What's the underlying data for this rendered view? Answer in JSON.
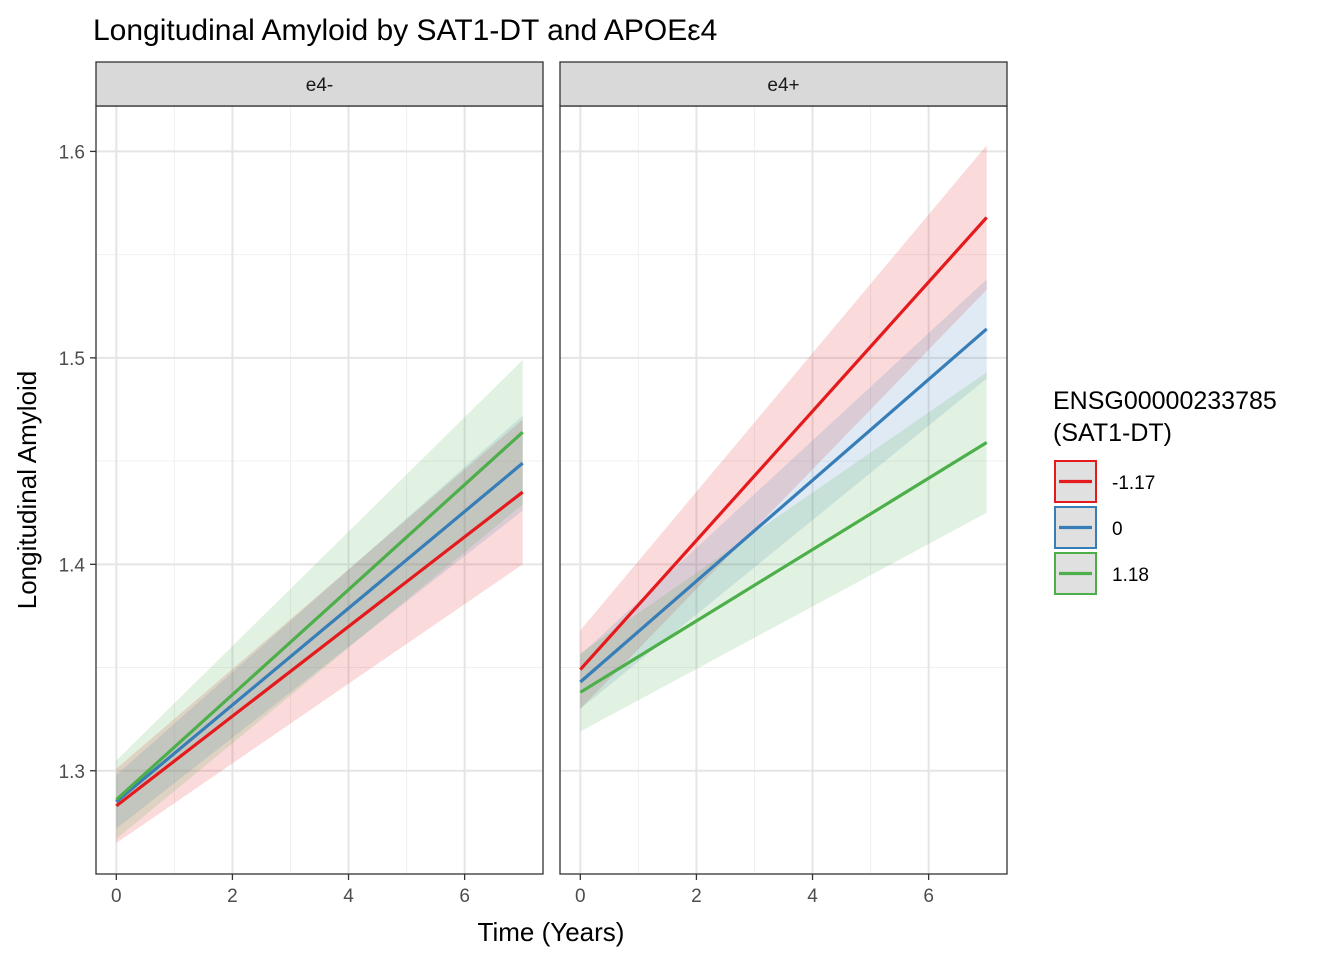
{
  "chart_data": {
    "type": "line",
    "title": "Longitudinal Amyloid by SAT1-DT and APOEε4",
    "xlabel": "Time (Years)",
    "ylabel": "Longitudinal Amyloid",
    "xlim": [
      -0.35,
      7.35
    ],
    "ylim": [
      1.25,
      1.622
    ],
    "xticks": [
      0,
      2,
      4,
      6
    ],
    "xtick_labels": [
      "0",
      "2",
      "4",
      "6"
    ],
    "yticks": [
      1.3,
      1.4,
      1.5,
      1.6
    ],
    "ytick_labels": [
      "1.3",
      "1.4",
      "1.5",
      "1.6"
    ],
    "grid": true,
    "legend": {
      "title_line1": "ENSG00000233785",
      "title_line2": "(SAT1-DT)",
      "placement": "right"
    },
    "panels": [
      {
        "label": "e4-",
        "series": [
          {
            "name": "-1.17",
            "color": "#E41A1C",
            "x": [
              0,
              7
            ],
            "y": [
              1.283,
              1.435
            ],
            "lower": [
              1.265,
              1.4
            ],
            "upper": [
              1.301,
              1.47
            ]
          },
          {
            "name": "0",
            "color": "#377EB8",
            "x": [
              0,
              7
            ],
            "y": [
              1.285,
              1.449
            ],
            "lower": [
              1.272,
              1.426
            ],
            "upper": [
              1.298,
              1.472
            ]
          },
          {
            "name": "1.18",
            "color": "#4DAF4A",
            "x": [
              0,
              7
            ],
            "y": [
              1.286,
              1.464
            ],
            "lower": [
              1.267,
              1.429
            ],
            "upper": [
              1.305,
              1.499
            ]
          }
        ]
      },
      {
        "label": "e4+",
        "series": [
          {
            "name": "-1.17",
            "color": "#E41A1C",
            "x": [
              0,
              7
            ],
            "y": [
              1.349,
              1.568
            ],
            "lower": [
              1.33,
              1.533
            ],
            "upper": [
              1.368,
              1.603
            ]
          },
          {
            "name": "0",
            "color": "#377EB8",
            "x": [
              0,
              7
            ],
            "y": [
              1.343,
              1.514
            ],
            "lower": [
              1.33,
              1.49
            ],
            "upper": [
              1.356,
              1.538
            ]
          },
          {
            "name": "1.18",
            "color": "#4DAF4A",
            "x": [
              0,
              7
            ],
            "y": [
              1.338,
              1.459
            ],
            "lower": [
              1.319,
              1.425
            ],
            "upper": [
              1.357,
              1.493
            ]
          }
        ]
      }
    ]
  }
}
